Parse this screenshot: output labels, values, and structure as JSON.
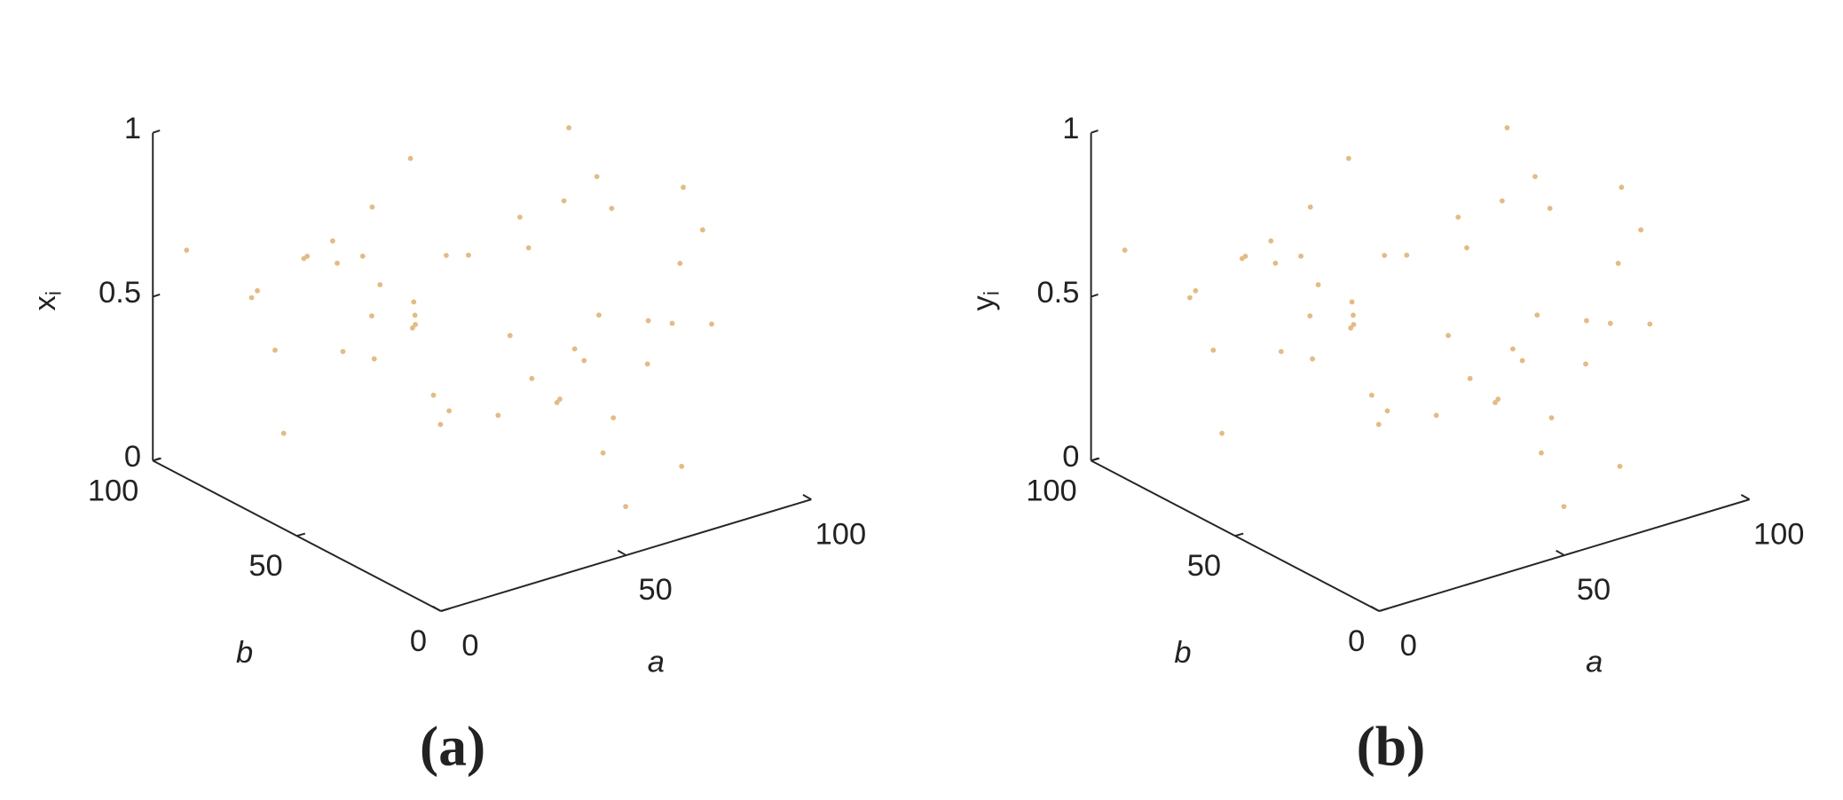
{
  "chart_data": [
    {
      "type": "scatter3d",
      "panel_label": "(a)",
      "xlabel": "a",
      "ylabel": "b",
      "zlabel": "x",
      "zlabel_sub": "i",
      "color": "#e3bb85",
      "xlim": [
        0,
        100
      ],
      "ylim": [
        0,
        100
      ],
      "zlim": [
        0,
        1
      ],
      "xticks": [
        0,
        50,
        100
      ],
      "yticks": [
        0,
        50,
        100
      ],
      "zticks": [
        0,
        0.5,
        1
      ],
      "a": [
        12,
        87,
        45,
        63,
        5,
        94,
        33,
        71,
        28,
        56,
        81,
        19,
        67,
        40,
        92,
        8,
        53,
        76,
        24,
        60,
        37,
        85,
        14,
        49,
        70,
        97,
        3,
        58,
        31,
        79,
        44,
        22,
        66,
        89,
        10,
        52,
        74,
        35,
        61,
        17,
        83,
        47,
        26,
        91,
        39,
        68,
        6,
        57,
        78,
        30
      ],
      "b": [
        73,
        21,
        58,
        9,
        44,
        66,
        90,
        35,
        12,
        81,
        50,
        27,
        95,
        62,
        38,
        76,
        4,
        55,
        29,
        87,
        16,
        69,
        42,
        99,
        7,
        53,
        31,
        84,
        61,
        18,
        47,
        92,
        25,
        70,
        36,
        64,
        11,
        79,
        48,
        2,
        57,
        33,
        88,
        23,
        74,
        41,
        96,
        14,
        59,
        85
      ],
      "values": [
        0.42,
        0.77,
        0.15,
        0.63,
        0.91,
        0.28,
        0.55,
        0.08,
        0.69,
        0.34,
        0.82,
        0.47,
        0.21,
        0.96,
        0.39,
        0.58,
        0.12,
        0.74,
        0.87,
        0.26,
        0.51,
        0.03,
        0.66,
        0.44,
        0.79,
        0.18,
        0.93,
        0.36,
        0.61,
        0.09,
        0.72,
        0.48,
        0.25,
        0.85,
        0.57,
        0.14,
        0.99,
        0.31,
        0.68,
        0.53,
        0.22,
        0.89,
        0.05,
        0.46,
        0.76,
        0.38,
        0.64,
        0.97,
        0.11,
        0.59
      ]
    },
    {
      "type": "scatter3d",
      "panel_label": "(b)",
      "xlabel": "a",
      "ylabel": "b",
      "zlabel": "y",
      "zlabel_sub": "i",
      "color": "#e3bb85",
      "xlim": [
        0,
        100
      ],
      "ylim": [
        0,
        100
      ],
      "zlim": [
        0,
        1
      ],
      "xticks": [
        0,
        50,
        100
      ],
      "yticks": [
        0,
        50,
        100
      ],
      "zticks": [
        0,
        0.5,
        1
      ],
      "a": [
        30,
        78,
        57,
        6,
        68,
        39,
        91,
        26,
        47,
        83,
        17,
        61,
        35,
        74,
        52,
        10,
        89,
        66,
        22,
        44,
        79,
        31,
        58,
        3,
        97,
        70,
        49,
        14,
        85,
        37,
        60,
        24,
        76,
        53,
        8,
        92,
        40,
        67,
        19,
        81,
        56,
        28,
        71,
        33,
        94,
        5,
        63,
        45,
        87,
        12
      ],
      "b": [
        85,
        59,
        14,
        96,
        41,
        74,
        23,
        88,
        33,
        57,
        2,
        48,
        79,
        11,
        64,
        36,
        70,
        25,
        92,
        47,
        18,
        61,
        84,
        31,
        53,
        7,
        99,
        42,
        69,
        16,
        87,
        29,
        55,
        4,
        76,
        38,
        62,
        95,
        27,
        50,
        81,
        12,
        35,
        90,
        66,
        44,
        9,
        58,
        21,
        73
      ],
      "values": [
        0.59,
        0.11,
        0.97,
        0.64,
        0.38,
        0.76,
        0.46,
        0.05,
        0.89,
        0.22,
        0.53,
        0.68,
        0.31,
        0.99,
        0.14,
        0.57,
        0.85,
        0.25,
        0.48,
        0.72,
        0.09,
        0.61,
        0.36,
        0.93,
        0.18,
        0.79,
        0.44,
        0.66,
        0.03,
        0.51,
        0.26,
        0.87,
        0.74,
        0.12,
        0.58,
        0.39,
        0.96,
        0.21,
        0.47,
        0.82,
        0.34,
        0.69,
        0.08,
        0.55,
        0.28,
        0.91,
        0.63,
        0.15,
        0.77,
        0.42
      ]
    }
  ]
}
